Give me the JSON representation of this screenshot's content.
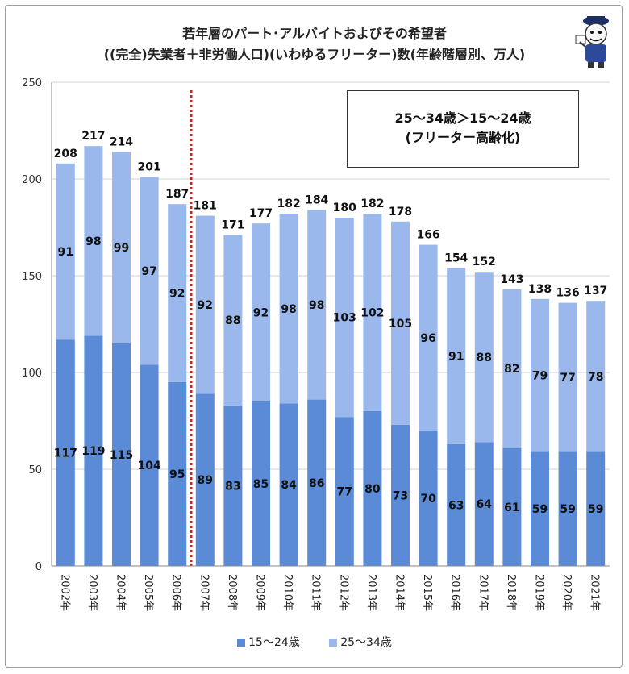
{
  "title": {
    "line1": "若年層のパート･アルバイトおよびその希望者",
    "line2": "((完全)失業者＋非労働人口)(いわゆるフリーター)数(年齢階層別、万人)"
  },
  "callout": {
    "line1": "25～34歳＞15～24歳",
    "line2": "(フリーター高齢化)"
  },
  "colors": {
    "young": "#5b8bd6",
    "older": "#9ab8ec",
    "divider": "#c0281f",
    "grid": "#d0d0d0"
  },
  "chart_data": {
    "type": "bar",
    "stacked": true,
    "categories": [
      "2002年",
      "2003年",
      "2004年",
      "2005年",
      "2006年",
      "2007年",
      "2008年",
      "2009年",
      "2010年",
      "2011年",
      "2012年",
      "2013年",
      "2014年",
      "2015年",
      "2016年",
      "2017年",
      "2018年",
      "2019年",
      "2020年",
      "2021年"
    ],
    "series": [
      {
        "name": "15～24歳",
        "values": [
          117,
          119,
          115,
          104,
          95,
          89,
          83,
          85,
          84,
          86,
          77,
          80,
          73,
          70,
          63,
          64,
          61,
          59,
          59,
          59
        ]
      },
      {
        "name": "25～34歳",
        "values": [
          91,
          98,
          99,
          97,
          92,
          92,
          88,
          92,
          98,
          98,
          103,
          102,
          105,
          96,
          91,
          88,
          82,
          79,
          77,
          78
        ]
      }
    ],
    "totals": [
      208,
      217,
      214,
      201,
      187,
      181,
      171,
      177,
      182,
      184,
      180,
      182,
      178,
      166,
      154,
      152,
      143,
      138,
      136,
      137
    ],
    "ylim": [
      0,
      250
    ],
    "yticks": [
      0,
      50,
      100,
      150,
      200,
      250
    ],
    "grid": true,
    "legend": "bottom"
  }
}
